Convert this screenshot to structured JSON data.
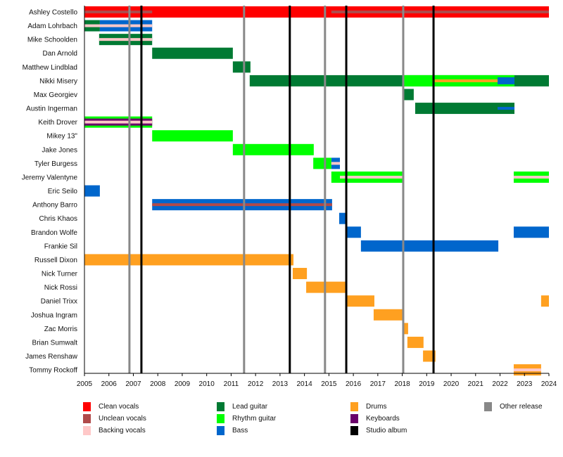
{
  "chart_data": {
    "type": "timeline",
    "xlim": [
      2005,
      2024
    ],
    "x_ticks": [
      "2005",
      "2006",
      "2007",
      "2008",
      "2009",
      "2010",
      "2011",
      "2012",
      "2013",
      "2014",
      "2015",
      "2016",
      "2017",
      "2018",
      "2019",
      "2020",
      "2021",
      "2022",
      "2023",
      "2024"
    ],
    "colors": {
      "clean_vocals": "#ff0000",
      "unclean_vocals": "#b04a4a",
      "backing_vocals": "#ffc8c8",
      "lead_guitar": "#007a33",
      "rhythm_guitar": "#00ff00",
      "bass": "#0066cc",
      "drums": "#ffa020",
      "keyboards": "#6a006a",
      "studio_album": "#000000",
      "other_release": "#888888"
    },
    "legend": [
      {
        "key": "clean_vocals",
        "label": "Clean vocals"
      },
      {
        "key": "unclean_vocals",
        "label": "Unclean vocals"
      },
      {
        "key": "backing_vocals",
        "label": "Backing vocals"
      },
      {
        "key": "lead_guitar",
        "label": "Lead guitar"
      },
      {
        "key": "rhythm_guitar",
        "label": "Rhythm guitar"
      },
      {
        "key": "bass",
        "label": "Bass"
      },
      {
        "key": "drums",
        "label": "Drums"
      },
      {
        "key": "keyboards",
        "label": "Keyboards"
      },
      {
        "key": "studio_album",
        "label": "Studio album"
      },
      {
        "key": "other_release",
        "label": "Other release"
      }
    ],
    "studio_albums": [
      2007.33,
      2013.4,
      2015.71,
      2019.28
    ],
    "other_releases": [
      2006.84,
      2011.53,
      2014.84,
      2018.04
    ],
    "members": [
      {
        "name": "Ashley Costello",
        "bars": [
          {
            "role": "clean_vocals",
            "start": 2005,
            "end": 2024
          },
          {
            "role": "unclean_vocals",
            "start": 2005,
            "end": 2007.77,
            "stripe": true
          },
          {
            "role": "unclean_vocals",
            "start": 2015.1,
            "end": 2024,
            "stripe": true
          }
        ]
      },
      {
        "name": "Adam Lohrbach",
        "bars": [
          {
            "role": "lead_guitar",
            "start": 2005,
            "end": 2005.63
          },
          {
            "role": "bass",
            "start": 2005.63,
            "end": 2007.77
          },
          {
            "role": "backing_vocals",
            "start": 2005,
            "end": 2007.77,
            "stripe": true
          }
        ]
      },
      {
        "name": "Mike Schoolden",
        "bars": [
          {
            "role": "lead_guitar",
            "start": 2005.6,
            "end": 2007.77
          },
          {
            "role": "backing_vocals",
            "start": 2005.6,
            "end": 2007.77,
            "stripe": true
          }
        ]
      },
      {
        "name": "Dan Arnold",
        "bars": [
          {
            "role": "lead_guitar",
            "start": 2007.77,
            "end": 2011.07
          }
        ]
      },
      {
        "name": "Matthew Lindblad",
        "bars": [
          {
            "role": "lead_guitar",
            "start": 2011.07,
            "end": 2011.79
          }
        ]
      },
      {
        "name": "Nikki Misery",
        "bars": [
          {
            "role": "lead_guitar",
            "start": 2011.76,
            "end": 2024
          },
          {
            "role": "rhythm_guitar",
            "start": 2018.01,
            "end": 2022.59
          },
          {
            "role": "drums",
            "start": 2019.33,
            "end": 2022.59,
            "stripe": true
          },
          {
            "role": "bass",
            "start": 2021.9,
            "end": 2022.59,
            "stripe": true,
            "wide": true
          }
        ]
      },
      {
        "name": "Max Georgiev",
        "bars": [
          {
            "role": "lead_guitar",
            "start": 2018.01,
            "end": 2018.47
          }
        ]
      },
      {
        "name": "Austin Ingerman",
        "bars": [
          {
            "role": "lead_guitar",
            "start": 2018.53,
            "end": 2022.59
          },
          {
            "role": "bass",
            "start": 2021.9,
            "end": 2022.59,
            "stripe": true
          }
        ]
      },
      {
        "name": "Keith Drover",
        "bars": [
          {
            "role": "rhythm_guitar",
            "start": 2005,
            "end": 2007.77
          },
          {
            "role": "keyboards",
            "start": 2005,
            "end": 2007.77,
            "stripe": true,
            "wide": true
          },
          {
            "role": "backing_vocals",
            "start": 2005,
            "end": 2007.77,
            "stripe": true
          }
        ]
      },
      {
        "name": "Mikey 13\"",
        "bars": [
          {
            "role": "rhythm_guitar",
            "start": 2007.77,
            "end": 2011.07
          }
        ]
      },
      {
        "name": "Jake Jones",
        "bars": [
          {
            "role": "rhythm_guitar",
            "start": 2011.07,
            "end": 2014.38
          }
        ]
      },
      {
        "name": "Tyler Burgess",
        "bars": [
          {
            "role": "rhythm_guitar",
            "start": 2014.36,
            "end": 2015.1
          },
          {
            "role": "bass",
            "start": 2015.1,
            "end": 2015.45
          },
          {
            "role": "backing_vocals",
            "start": 2015.1,
            "end": 2015.45,
            "stripe": true
          }
        ]
      },
      {
        "name": "Jeremy Valentyne",
        "bars": [
          {
            "role": "rhythm_guitar",
            "start": 2015.1,
            "end": 2018.04
          },
          {
            "role": "backing_vocals",
            "start": 2015.45,
            "end": 2018.04,
            "stripe": true
          },
          {
            "role": "rhythm_guitar",
            "start": 2022.56,
            "end": 2024
          },
          {
            "role": "backing_vocals",
            "start": 2022.56,
            "end": 2024,
            "stripe": true
          }
        ]
      },
      {
        "name": "Eric Seilo",
        "bars": [
          {
            "role": "bass",
            "start": 2005,
            "end": 2005.63
          }
        ]
      },
      {
        "name": "Anthony Barro",
        "bars": [
          {
            "role": "bass",
            "start": 2007.77,
            "end": 2015.13
          },
          {
            "role": "unclean_vocals",
            "start": 2007.77,
            "end": 2015.13,
            "stripe": true
          }
        ]
      },
      {
        "name": "Chris Khaos",
        "bars": [
          {
            "role": "bass",
            "start": 2015.42,
            "end": 2015.74
          }
        ]
      },
      {
        "name": "Brandon Wolfe",
        "bars": [
          {
            "role": "bass",
            "start": 2015.71,
            "end": 2016.31
          },
          {
            "role": "bass",
            "start": 2022.56,
            "end": 2024
          }
        ]
      },
      {
        "name": "Frankie Sil",
        "bars": [
          {
            "role": "bass",
            "start": 2016.31,
            "end": 2021.93
          }
        ]
      },
      {
        "name": "Russell Dixon",
        "bars": [
          {
            "role": "drums",
            "start": 2005,
            "end": 2013.55
          }
        ]
      },
      {
        "name": "Nick Turner",
        "bars": [
          {
            "role": "drums",
            "start": 2013.52,
            "end": 2014.1
          }
        ]
      },
      {
        "name": "Nick Rossi",
        "bars": [
          {
            "role": "drums",
            "start": 2014.07,
            "end": 2015.74
          }
        ]
      },
      {
        "name": "Daniel Trixx",
        "bars": [
          {
            "role": "drums",
            "start": 2015.71,
            "end": 2016.86
          },
          {
            "role": "drums",
            "start": 2023.68,
            "end": 2024
          }
        ]
      },
      {
        "name": "Joshua Ingram",
        "bars": [
          {
            "role": "drums",
            "start": 2016.83,
            "end": 2018.04
          }
        ]
      },
      {
        "name": "Zac Morris",
        "bars": [
          {
            "role": "drums",
            "start": 2018.01,
            "end": 2018.24
          }
        ]
      },
      {
        "name": "Brian Sumwalt",
        "bars": [
          {
            "role": "drums",
            "start": 2018.21,
            "end": 2018.87
          }
        ]
      },
      {
        "name": "James Renshaw",
        "bars": [
          {
            "role": "drums",
            "start": 2018.85,
            "end": 2019.36
          }
        ]
      },
      {
        "name": "Tommy Rockoff",
        "bars": [
          {
            "role": "drums",
            "start": 2022.56,
            "end": 2023.68
          },
          {
            "role": "backing_vocals",
            "start": 2022.56,
            "end": 2023.68,
            "stripe": true
          }
        ]
      }
    ]
  }
}
